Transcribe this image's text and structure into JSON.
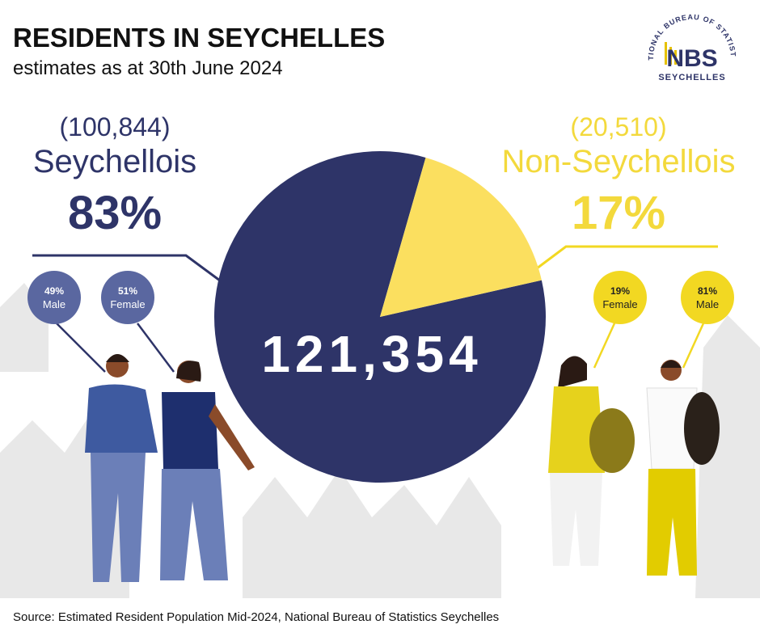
{
  "header": {
    "title": "RESIDENTS IN SEYCHELLES",
    "subtitle": "estimates as at 30th June 2024"
  },
  "logo": {
    "ring": "NATIONAL BUREAU OF STATISTICS",
    "mark": "NBS",
    "name": "SEYCHELLES"
  },
  "chart_data": {
    "type": "pie",
    "categories": [
      "Seychellois",
      "Non-Seychellois"
    ],
    "values": [
      83,
      17
    ],
    "value_labels": [
      "83%",
      "17%"
    ],
    "colors": [
      "#2e3468",
      "#fbdf5f"
    ],
    "counts": [
      "(100,844)",
      "(20,510)"
    ],
    "total": "121,354"
  },
  "breakdown": [
    [
      {
        "share": "49%",
        "label": "Male"
      },
      {
        "share": "51%",
        "label": "Female"
      }
    ],
    [
      {
        "share": "19%",
        "label": "Female"
      },
      {
        "share": "81%",
        "label": "Male"
      }
    ]
  ],
  "source": "Source: Estimated Resident Population Mid-2024, National Bureau of Statistics Seychelles"
}
